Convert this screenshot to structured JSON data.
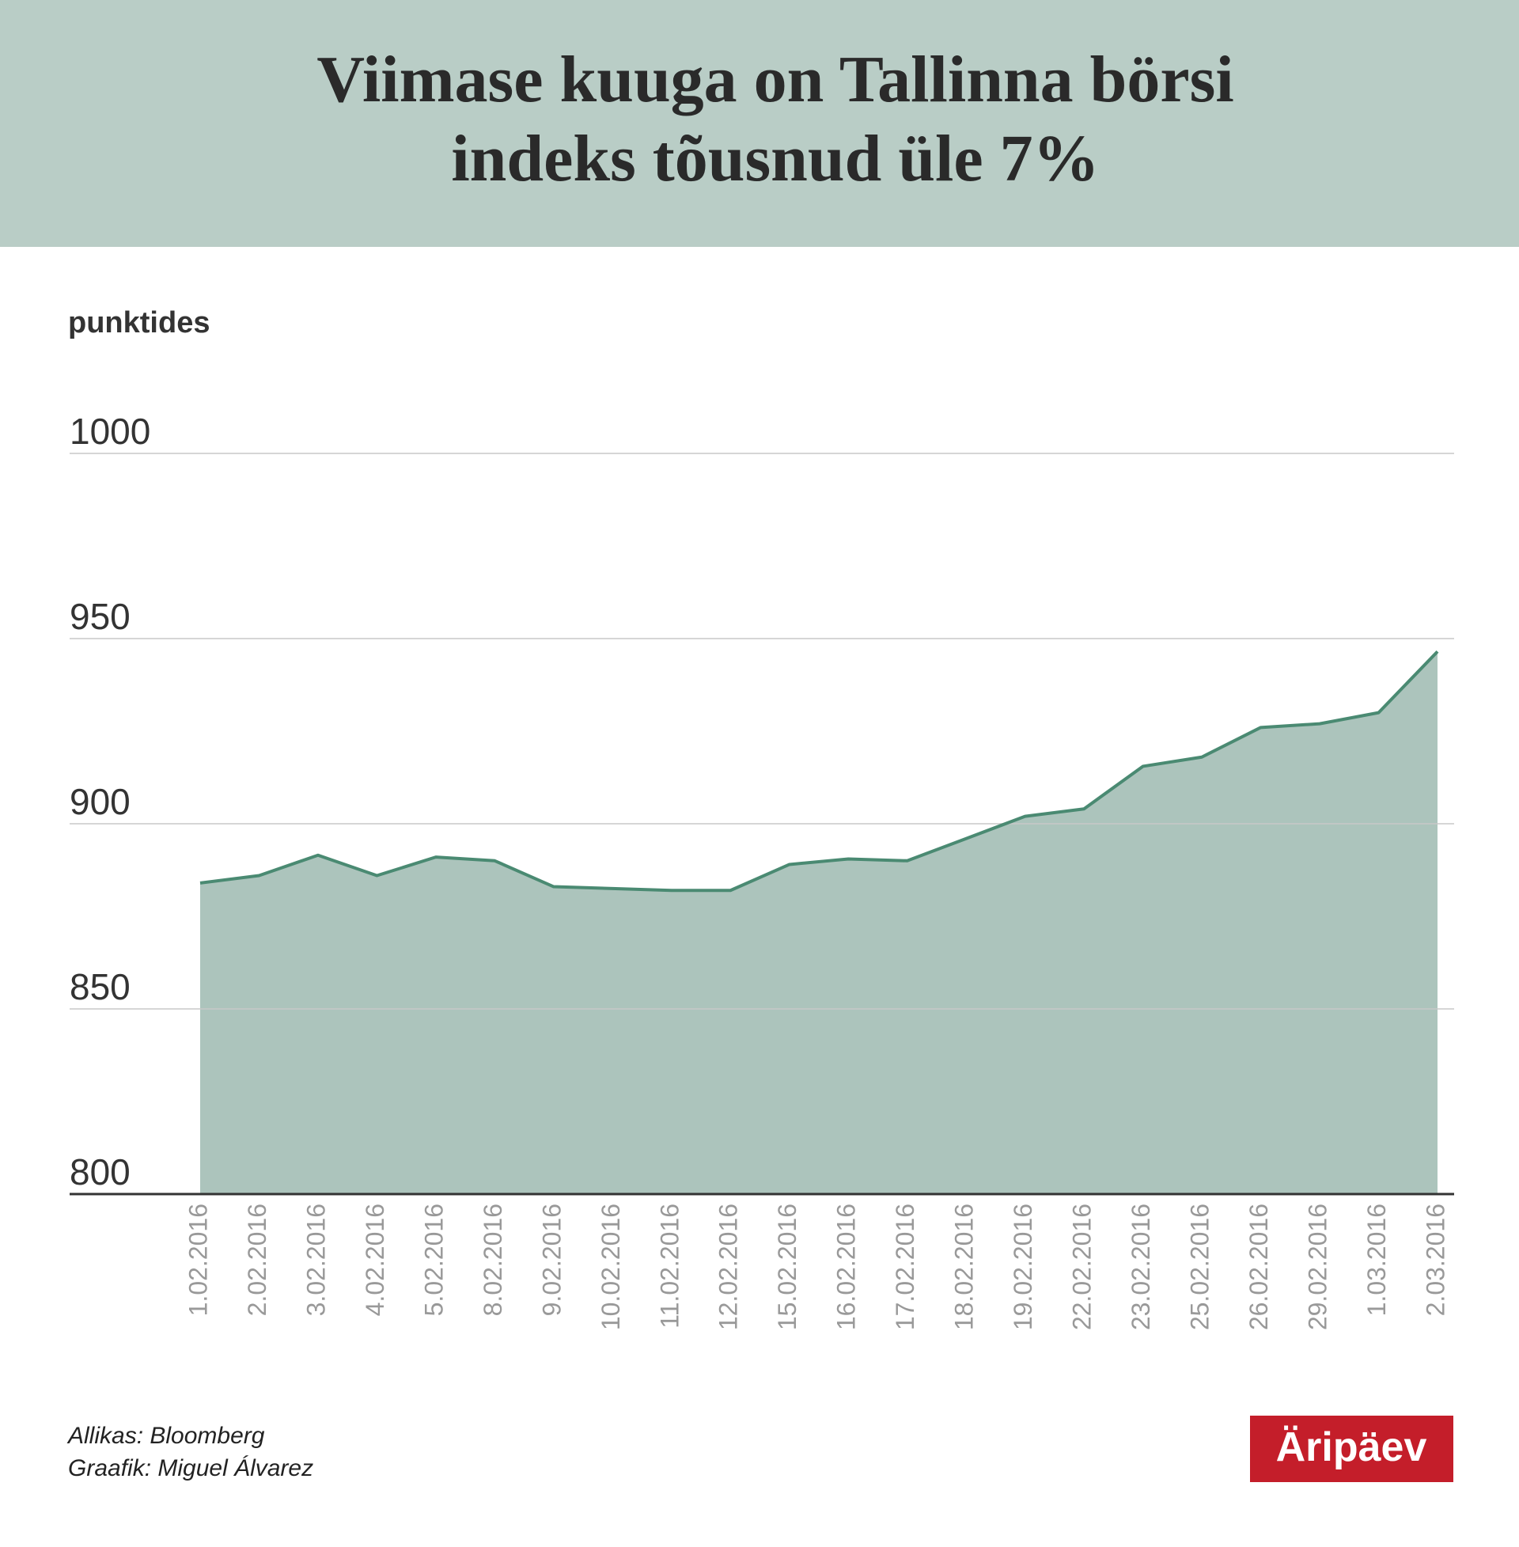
{
  "chart_data": {
    "type": "area",
    "title": "Viimase kuuga on Tallinna börsi indeks tõusnud üle 7%",
    "y_label": "punktides",
    "categories": [
      "1.02.2016",
      "2.02.2016",
      "3.02.2016",
      "4.02.2016",
      "5.02.2016",
      "8.02.2016",
      "9.02.2016",
      "10.02.2016",
      "11.02.2016",
      "12.02.2016",
      "15.02.2016",
      "16.02.2016",
      "17.02.2016",
      "18.02.2016",
      "19.02.2016",
      "22.02.2016",
      "23.02.2016",
      "25.02.2016",
      "26.02.2016",
      "29.02.2016",
      "1.03.2016",
      "2.03.2016"
    ],
    "values": [
      884,
      886,
      891.5,
      886,
      891,
      890,
      883,
      882.5,
      882,
      882,
      889,
      890.5,
      890,
      896,
      902,
      904,
      915.5,
      918,
      926,
      927,
      930,
      946.5
    ],
    "color": "#4a8a72",
    "fill": "#acc4bc",
    "ylim": [
      800,
      1000
    ],
    "yticks": [
      800,
      850,
      900,
      950,
      1000
    ],
    "grid": true,
    "source": "Allikas: Bloomberg",
    "credit": "Graafik: Miguel Álvarez",
    "logo": "Äripäev"
  }
}
